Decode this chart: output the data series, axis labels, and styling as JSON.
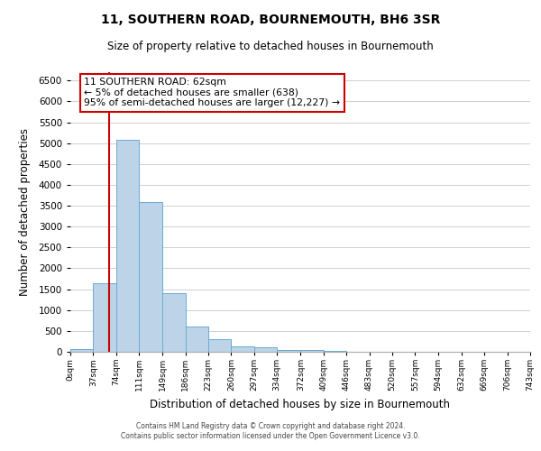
{
  "title": "11, SOUTHERN ROAD, BOURNEMOUTH, BH6 3SR",
  "subtitle": "Size of property relative to detached houses in Bournemouth",
  "xlabel": "Distribution of detached houses by size in Bournemouth",
  "ylabel": "Number of detached properties",
  "bin_edges": [
    0,
    37,
    74,
    111,
    149,
    186,
    223,
    260,
    297,
    334,
    372,
    409,
    446,
    483,
    520,
    557,
    594,
    632,
    669,
    706,
    743
  ],
  "counts": [
    75,
    1650,
    5080,
    3580,
    1410,
    610,
    300,
    140,
    100,
    50,
    40,
    30,
    0,
    0,
    0,
    0,
    0,
    0,
    0,
    0
  ],
  "bar_color": "#bdd4e8",
  "bar_edge_color": "#6aaad4",
  "property_line_x": 62,
  "property_line_color": "#cc0000",
  "annotation_line1": "11 SOUTHERN ROAD: 62sqm",
  "annotation_line2": "← 5% of detached houses are smaller (638)",
  "annotation_line3": "95% of semi-detached houses are larger (12,227) →",
  "annotation_box_color": "#ffffff",
  "annotation_border_color": "#cc0000",
  "ylim": [
    0,
    6700
  ],
  "yticks": [
    0,
    500,
    1000,
    1500,
    2000,
    2500,
    3000,
    3500,
    4000,
    4500,
    5000,
    5500,
    6000,
    6500
  ],
  "footer_line1": "Contains HM Land Registry data © Crown copyright and database right 2024.",
  "footer_line2": "Contains public sector information licensed under the Open Government Licence v3.0.",
  "bg_color": "#ffffff",
  "grid_color": "#d0d0d0"
}
